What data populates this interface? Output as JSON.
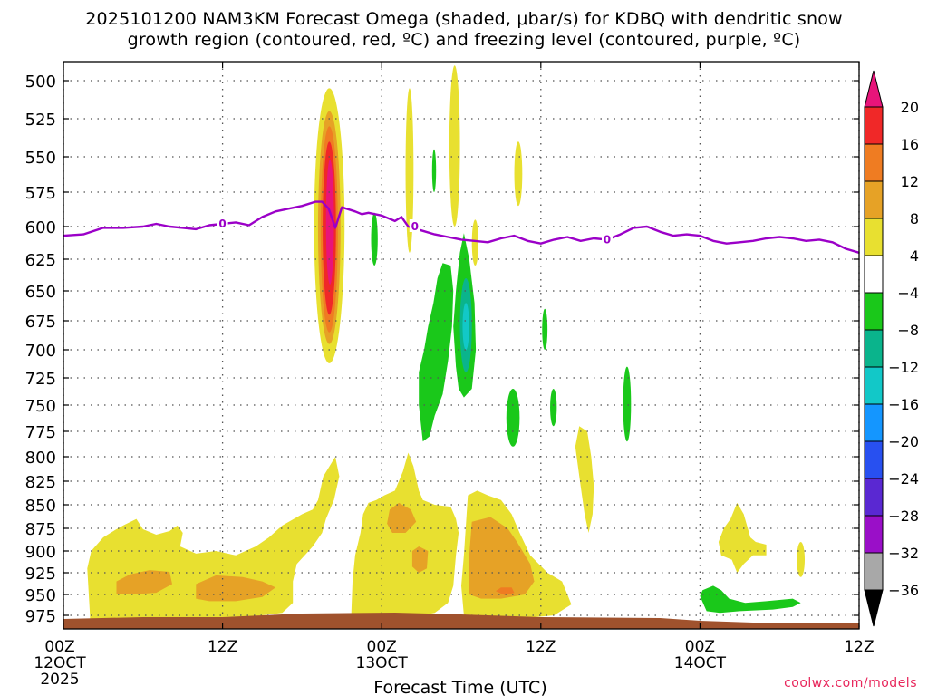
{
  "title_line1": "2025101200 NAM3KM Forecast Omega (shaded, μbar/s) for KDBQ with dendritic snow",
  "title_line2": "growth region (contoured, red, ºC) and freezing level (contoured, purple, ºC)",
  "credit": "coolwx.com/models",
  "chart_data": {
    "type": "heatmap",
    "title": "2025101200 NAM3KM Forecast Omega (shaded, μbar/s) for KDBQ with dendritic snow growth region (contoured, red, ºC) and freezing level (contoured, purple, ºC)",
    "xlabel": "Forecast Time (UTC)",
    "ylabel": "",
    "x_unit": "hours after 2025-10-12 00Z",
    "xlim": [
      0,
      60
    ],
    "ylim": [
      985,
      490
    ],
    "y_scale": "pressure (mb), reversed",
    "grid": true,
    "x_ticks": [
      {
        "hour": 0,
        "lines": [
          "00Z",
          "12OCT",
          "2025"
        ]
      },
      {
        "hour": 12,
        "lines": [
          "12Z"
        ]
      },
      {
        "hour": 24,
        "lines": [
          "00Z",
          "13OCT"
        ]
      },
      {
        "hour": 36,
        "lines": [
          "12Z"
        ]
      },
      {
        "hour": 48,
        "lines": [
          "00Z",
          "14OCT"
        ]
      },
      {
        "hour": 60,
        "lines": [
          "12Z"
        ]
      }
    ],
    "y_ticks": [
      500,
      525,
      550,
      575,
      600,
      625,
      650,
      675,
      700,
      725,
      750,
      775,
      800,
      825,
      850,
      875,
      900,
      925,
      950,
      975
    ],
    "colorbar": {
      "levels": [
        20,
        16,
        12,
        8,
        4,
        -4,
        -8,
        -12,
        -16,
        -20,
        -24,
        -28,
        -32,
        -36
      ],
      "labels": [
        "20",
        "16",
        "12",
        "8",
        "4",
        "−4",
        "−8",
        "−12",
        "−16",
        "−20",
        "−24",
        "−28",
        "−32",
        "−36"
      ],
      "colors": [
        "#e8147a",
        "#f02828",
        "#ef7c22",
        "#e6a226",
        "#e8e030",
        "#ffffff",
        "#1ac81a",
        "#0ab48c",
        "#12c8c8",
        "#1496ff",
        "#2850f0",
        "#5a28d2",
        "#9a0fc8",
        "#a8a8a8",
        "#000000"
      ]
    },
    "freezing_level": {
      "label": "0",
      "color": "#9b00c8",
      "x": [
        0,
        1.5,
        3,
        4.5,
        6,
        7,
        8,
        9,
        10,
        11,
        12,
        13,
        14,
        15,
        16,
        17,
        18,
        19,
        19.5,
        20,
        20.5,
        21,
        22,
        22.5,
        23,
        24,
        25,
        25.5,
        26,
        27,
        28,
        29,
        30,
        31,
        32,
        33,
        34,
        35,
        36,
        37,
        38,
        39,
        40,
        41,
        42,
        43,
        44,
        45,
        46,
        47,
        48,
        49,
        50,
        51,
        52,
        53,
        54,
        55,
        56,
        57,
        58,
        59,
        60
      ],
      "y": [
        607,
        606,
        601,
        601,
        600,
        598,
        600,
        601,
        602,
        599,
        598,
        597,
        599,
        593,
        589,
        587,
        585,
        582,
        582,
        587,
        601,
        586,
        589,
        591,
        590,
        592,
        596,
        593,
        600,
        603,
        606,
        608,
        610,
        611,
        612,
        609,
        607,
        611,
        613,
        610,
        608,
        611,
        609,
        610,
        606,
        601,
        600,
        604,
        607,
        606,
        607,
        611,
        613,
        612,
        611,
        609,
        608,
        609,
        611,
        610,
        612,
        617,
        620
      ],
      "labels_at": [
        12,
        26.5,
        41
      ]
    },
    "terrain": {
      "color": "#a0522d",
      "surface_pressure_mb": 982
    },
    "regions": [
      {
        "name": "omega-max",
        "hours": [
          19.8,
          20.4
        ],
        "pressure": [
          535,
          700
        ],
        "value": 20,
        "rings": [
          [
            18.9,
            21.2,
            505,
            712,
            4
          ],
          [
            19.2,
            20.9,
            520,
            695,
            8
          ],
          [
            19.4,
            20.7,
            530,
            685,
            12
          ],
          [
            19.55,
            20.55,
            540,
            670,
            16
          ]
        ]
      },
      {
        "name": "upward-uplift",
        "hours": [
          24,
          36
        ],
        "pressure": [
          500,
          600
        ],
        "value": 4
      },
      {
        "name": "downward-core",
        "hours": [
          27,
          31
        ],
        "pressure": [
          625,
          790
        ],
        "value": -8
      },
      {
        "name": "low-level-uplift",
        "hours": [
          2,
          38
        ],
        "pressure": [
          820,
          975
        ],
        "value": 8
      }
    ]
  }
}
